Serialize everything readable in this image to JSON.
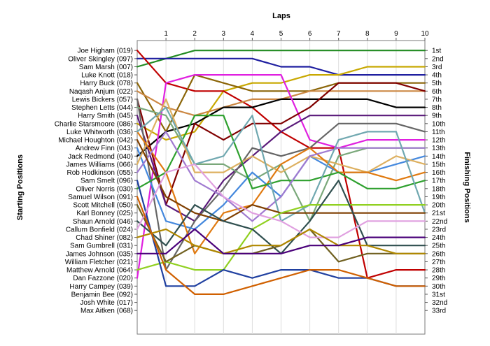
{
  "chart_data": {
    "type": "line",
    "title": "",
    "xlabel": "Laps",
    "ylabel_left": "Starting Positions",
    "ylabel_right": "Finishing Positions",
    "laps": [
      1,
      2,
      3,
      4,
      5,
      6,
      7,
      8,
      9,
      10
    ],
    "grid": true,
    "starting_labels": [
      "Joe Higham (019)",
      "Oliver Skingley (097)",
      "Sam Marsh (007)",
      "Luke Knott (018)",
      "Harry Buck (078)",
      "Naqash Anjum (022)",
      "Lewis Bickers (057)",
      "Stephen Letts (044)",
      "Harry Smith (045)",
      "Charlie Starsmoore (086)",
      "Luke Whitworth (036)",
      "Michael Houghton (042)",
      "Andrew Finn (043)",
      "Jack Redmond (040)",
      "James Williams (066)",
      "Rob Hodkinson (055)",
      "Sam Smelt (096)",
      "Oliver Norris (030)",
      "Samuel Wilson (091)",
      "Scott Mitchell (050)",
      "Karl Bonney (025)",
      "Shaun Arnold (046)",
      "Callum Bonfield (024)",
      "Chad Shiner (082)",
      "Sam Gumbrell (031)",
      "James Johnson (035)",
      "William Fletcher (021)",
      "Matthew Arnold (064)",
      "Dan Fazzone (020)",
      "Harry Campey (039)",
      "Benjamin Bee (092)",
      "Josh White (017)",
      "Max Aitken (068)"
    ],
    "finishing_labels": [
      "1st",
      "2nd",
      "3rd",
      "4th",
      "5th",
      "6th",
      "7th",
      "8th",
      "9th",
      "10th",
      "11th",
      "12th",
      "13th",
      "14th",
      "15th",
      "16th",
      "17th",
      "18th",
      "19th",
      "20th",
      "21st",
      "22nd",
      "23rd",
      "24th",
      "25th",
      "26th",
      "27th",
      "28th",
      "29th",
      "30th",
      "31st",
      "32nd",
      "33rd"
    ],
    "series": [
      {
        "color": "#228B22",
        "values": [
          3,
          2,
          1,
          1,
          1,
          1,
          1,
          1,
          1,
          1,
          1
        ]
      },
      {
        "color": "#1F1FA0",
        "values": [
          2,
          2,
          2,
          2,
          2,
          3,
          3,
          4,
          4,
          4,
          4
        ]
      },
      {
        "color": "#C8A800",
        "values": [
          10,
          12,
          11,
          6,
          5,
          5,
          4,
          4,
          3,
          3,
          3
        ]
      },
      {
        "color": "#C00000",
        "values": [
          1,
          5,
          6,
          6,
          8,
          11,
          13,
          13,
          29,
          28,
          28
        ]
      },
      {
        "color": "#8B6508",
        "values": [
          5,
          11,
          4,
          5,
          6,
          6,
          6,
          5,
          5,
          5,
          5
        ]
      },
      {
        "color": "#CC8844",
        "values": [
          6,
          8,
          9,
          8,
          7,
          7,
          6,
          6,
          6,
          6,
          6
        ]
      },
      {
        "color": "#000000",
        "values": [
          14,
          11,
          10,
          8,
          8,
          7,
          7,
          7,
          7,
          8,
          8
        ]
      },
      {
        "color": "#E020E0",
        "values": [
          29,
          5,
          4,
          4,
          4,
          4,
          12,
          13,
          12,
          12,
          12
        ]
      },
      {
        "color": "#800000",
        "values": [
          7,
          20,
          10,
          12,
          10,
          10,
          8,
          5,
          5,
          5,
          6
        ]
      },
      {
        "color": "#5A1A7A",
        "values": [
          9,
          20,
          22,
          17,
          14,
          11,
          9,
          9,
          9,
          9,
          9
        ]
      },
      {
        "color": "#666666",
        "values": [
          7,
          28,
          22,
          18,
          13,
          14,
          13,
          10,
          10,
          10,
          11
        ]
      },
      {
        "color": "#7AA87A",
        "values": [
          8,
          9,
          15,
          15,
          17,
          15,
          22,
          14,
          13,
          13,
          13
        ]
      },
      {
        "color": "#4488DD",
        "values": [
          13,
          22,
          23,
          20,
          16,
          19,
          14,
          16,
          16,
          15,
          14
        ]
      },
      {
        "color": "#DDB060",
        "values": [
          15,
          7,
          16,
          16,
          14,
          16,
          14,
          15,
          16,
          14,
          15
        ]
      },
      {
        "color": "#E07A10",
        "values": [
          11,
          16,
          26,
          21,
          20,
          15,
          13,
          16,
          16,
          17,
          16
        ]
      },
      {
        "color": "#2EA02E",
        "values": [
          18,
          16,
          9,
          9,
          18,
          17,
          17,
          16,
          18,
          18,
          17
        ]
      },
      {
        "color": "#A07AD0",
        "values": [
          16,
          11,
          17,
          19,
          22,
          19,
          14,
          13,
          13,
          13,
          13
        ]
      },
      {
        "color": "#70A8B0",
        "values": [
          11,
          8,
          15,
          14,
          9,
          22,
          20,
          12,
          11,
          11,
          21
        ]
      },
      {
        "color": "#7F3F00",
        "values": [
          12,
          19,
          21,
          22,
          20,
          21,
          21,
          21,
          21,
          21,
          21
        ]
      },
      {
        "color": "#90D020",
        "values": [
          28,
          27,
          28,
          28,
          23,
          21,
          20,
          20,
          20,
          20,
          20
        ]
      },
      {
        "color": "#2F4F4F",
        "values": [
          22,
          25,
          20,
          22,
          23,
          26,
          22,
          17,
          25,
          25,
          25
        ]
      },
      {
        "color": "#2040A0",
        "values": [
          17,
          30,
          30,
          28,
          29,
          28,
          28,
          29,
          29,
          30,
          30
        ]
      },
      {
        "color": "#706020",
        "values": [
          20,
          27,
          25,
          26,
          26,
          25,
          23,
          27,
          26,
          26,
          26
        ]
      },
      {
        "color": "#E0A0E0",
        "values": [
          23,
          16,
          15,
          19,
          21,
          22,
          24,
          24,
          22,
          22,
          22
        ]
      },
      {
        "color": "#B08800",
        "values": [
          24,
          23,
          25,
          26,
          25,
          25,
          23,
          25,
          25,
          26,
          26
        ]
      },
      {
        "color": "#4A007A",
        "values": [
          26,
          26,
          23,
          26,
          26,
          26,
          25,
          25,
          24,
          24,
          24
        ]
      },
      {
        "color": "#D06000",
        "values": [
          19,
          28,
          31,
          31,
          30,
          29,
          28,
          28,
          29,
          30,
          30
        ]
      }
    ]
  }
}
